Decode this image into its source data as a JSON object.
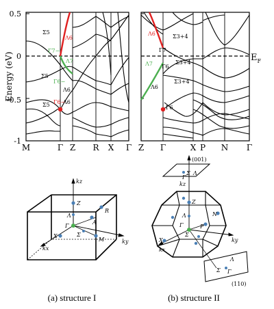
{
  "figure": {
    "band_panel": {
      "y_axis_label": "Energy (eV)",
      "y_ticks": [
        "0.5",
        "0",
        "-0.5",
        "-1"
      ],
      "fermi_label": "E",
      "fermi_sub": "F",
      "left_k_labels": [
        "M",
        "Γ",
        "Z",
        "R",
        "X",
        "Γ"
      ],
      "right_k_labels": [
        "Z",
        "Γ",
        "X",
        "P",
        "N",
        "Γ"
      ],
      "left_annotations": [
        "Σ5",
        "Λ6",
        "Γ7−",
        "Λ7",
        "Σ5",
        "Γ6−",
        "Λ6",
        "Σ5",
        "Γ6−",
        "Λ6"
      ],
      "right_annotations": [
        "Λ6",
        "Σ3+4",
        "Γ7",
        "Λ7",
        "Γ6",
        "Σ3+4",
        "Λ6",
        "Σ3+4",
        "Γ6"
      ],
      "colors": {
        "red": "#e02020",
        "green": "#4caf50",
        "black": "#000000"
      }
    },
    "structure_I": {
      "axes": [
        "kz",
        "ky",
        "kx"
      ],
      "points": [
        "Z",
        "R",
        "A",
        "Γ",
        "Λ",
        "Σ",
        "X",
        "M"
      ],
      "caption": "(a) structure I"
    },
    "structure_II": {
      "axes": [
        "kz",
        "ky",
        "kx"
      ],
      "points": [
        "Z",
        "N",
        "P",
        "Γ",
        "Λ",
        "Σ",
        "X"
      ],
      "top_plane_label": "(001)",
      "top_plane_points": [
        "Σ",
        "Γ",
        "Λ"
      ],
      "side_plane_label": "(110)",
      "side_plane_points": [
        "Λ",
        "Σ",
        "Γ"
      ],
      "caption": "(b) structure II"
    }
  }
}
